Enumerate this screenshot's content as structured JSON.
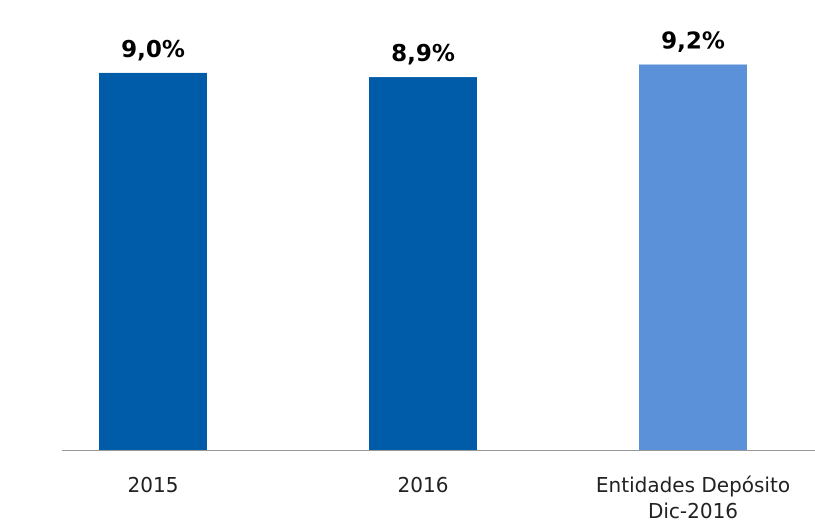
{
  "chart_data": {
    "type": "bar",
    "categories": [
      "2015",
      "2016",
      "Entidades Depósito Dic-2016"
    ],
    "values": [
      9.0,
      8.9,
      9.2
    ],
    "value_labels": [
      "9,0%",
      "8,9%",
      "9,2%"
    ],
    "colors": [
      "#005ca9",
      "#005ca9",
      "#5a91d8"
    ],
    "ylim": [
      0,
      10
    ]
  }
}
